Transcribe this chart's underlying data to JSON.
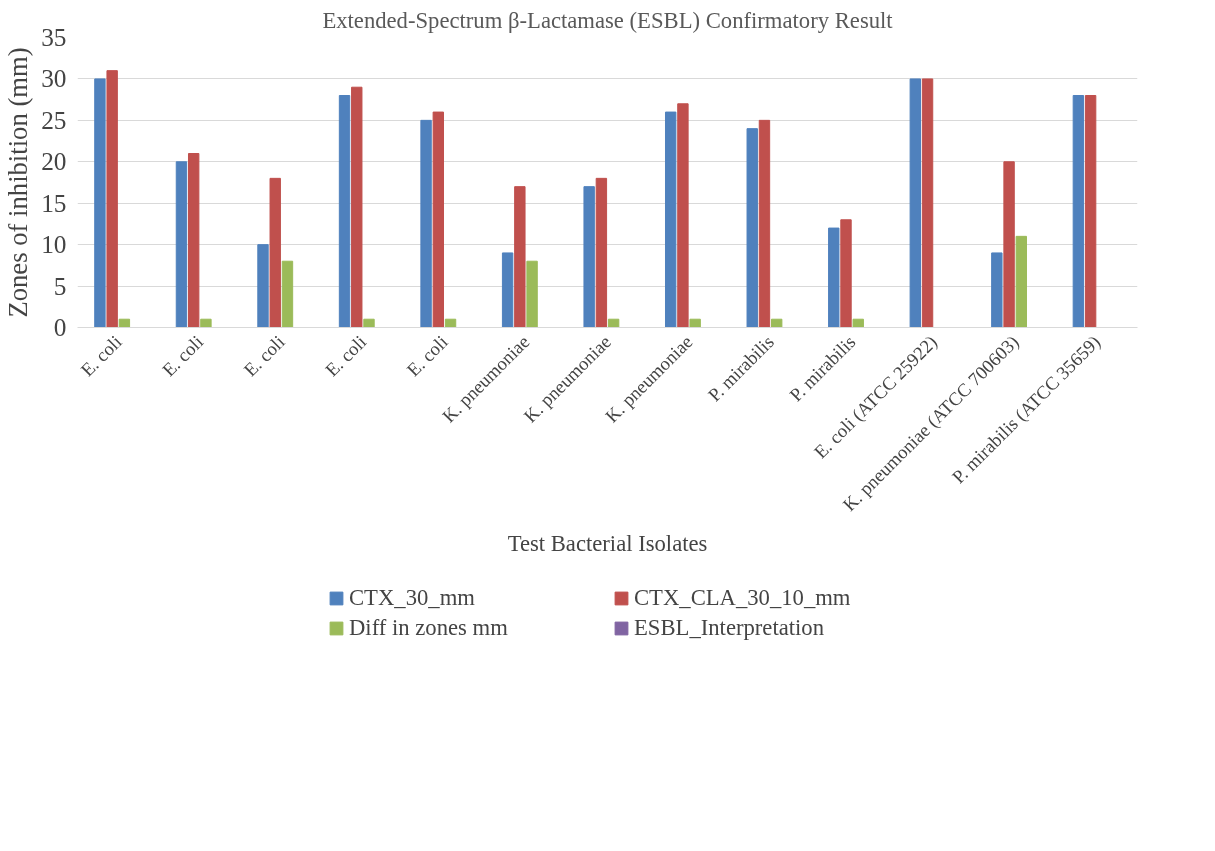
{
  "chart_data": {
    "type": "bar",
    "title": "Extended-Spectrum β-Lactamase (ESBL) Confirmatory Result",
    "xlabel": "Test Bacterial Isolates",
    "ylabel": "Zones of inhibition (mm)",
    "categories": [
      "E. coli",
      "E. coli",
      "E. coli",
      "E. coli",
      "E. coli",
      "K. pneumoniae",
      "K. pneumoniae",
      "K. pneumoniae",
      "P. mirabilis",
      "P. mirabilis",
      "E. coli (ATCC 25922)",
      "K. pneumoniae (ATCC 700603)",
      "P. mirabilis (ATCC 35659)"
    ],
    "series": [
      {
        "name": "CTX_30_mm",
        "color": "#4f81bd",
        "values": [
          30,
          20,
          10,
          28,
          25,
          9,
          17,
          26,
          24,
          12,
          30,
          9,
          28
        ]
      },
      {
        "name": "CTX_CLA_30_10_mm",
        "color": "#c0504d",
        "values": [
          31,
          21,
          18,
          29,
          26,
          17,
          18,
          27,
          25,
          13,
          30,
          20,
          28
        ]
      },
      {
        "name": "Diff in zones mm",
        "color": "#9bbb59",
        "values": [
          1,
          1,
          8,
          1,
          1,
          8,
          1,
          1,
          1,
          1,
          0,
          11,
          0
        ]
      },
      {
        "name": "ESBL_Interpretation",
        "color": "#8064a2",
        "values": [
          null,
          null,
          null,
          null,
          null,
          null,
          null,
          null,
          null,
          null,
          null,
          null,
          null
        ]
      }
    ],
    "ylim": [
      0,
      35
    ],
    "yticks": [
      0,
      5,
      10,
      15,
      20,
      25,
      30,
      35
    ],
    "grid": "y",
    "legend": "bottom"
  }
}
